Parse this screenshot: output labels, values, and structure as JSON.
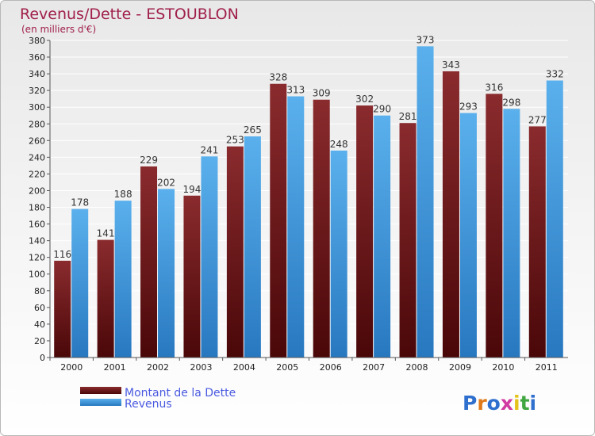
{
  "header": {
    "title": "Revenus/Dette - ESTOUBLON",
    "subtitle": "(en milliers d'€)"
  },
  "logo": {
    "text": "Proxiti"
  },
  "colors": {
    "dette": "#6e1518",
    "revenus": "#3a96dc",
    "title": "#a0204a",
    "legend_text": "#4a5ae0"
  },
  "chart_data": {
    "type": "bar",
    "categories": [
      "2000",
      "2001",
      "2002",
      "2003",
      "2004",
      "2005",
      "2006",
      "2007",
      "2008",
      "2009",
      "2010",
      "2011"
    ],
    "series": [
      {
        "name": "Montant de la Dette",
        "values": [
          116,
          141,
          229,
          194,
          253,
          328,
          309,
          302,
          281,
          343,
          316,
          277
        ]
      },
      {
        "name": "Revenus",
        "values": [
          178,
          188,
          202,
          241,
          265,
          313,
          248,
          290,
          373,
          293,
          298,
          332
        ]
      }
    ],
    "title": "Revenus/Dette - ESTOUBLON",
    "subtitle": "(en milliers d'€)",
    "xlabel": "",
    "ylabel": "",
    "ylim": [
      0,
      380
    ],
    "ytick_step": 20,
    "grid": true,
    "legend_position": "bottom-left",
    "data_labels": true
  }
}
